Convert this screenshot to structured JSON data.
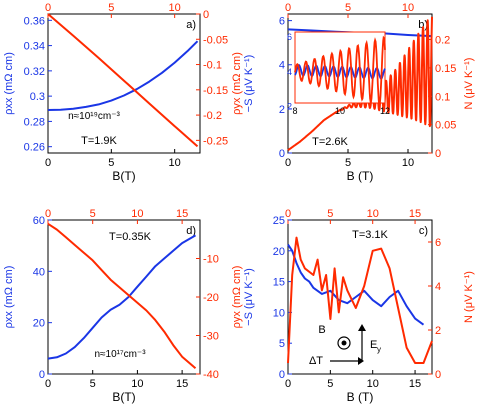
{
  "colors": {
    "blue": "#1a36e6",
    "red": "#ff2a00",
    "black": "#000000"
  },
  "chart_data": [
    {
      "panel_label": "a)",
      "type": "line",
      "xlabel": "B(T)",
      "ylabel": "ρxx (mΩ cm)",
      "y2label": "ρyx (mΩ cm)",
      "bottom_ticks": [
        "0",
        "5",
        "10"
      ],
      "top_ticks": [
        "0",
        "5",
        "10"
      ],
      "left_ticks": [
        "0.26",
        "0.28",
        "0.3",
        "0.32",
        "0.34",
        "0.36"
      ],
      "right_ticks": [
        "-0.25",
        "-0.2",
        "-0.15",
        "-0.1",
        "-0.05",
        "0"
      ],
      "xlim": [
        0,
        12
      ],
      "ylim": [
        0.255,
        0.365
      ],
      "y2lim": [
        -0.275,
        0
      ],
      "annotations": [
        "n≈10¹⁹cm⁻³",
        "T=1.9K"
      ],
      "series": [
        {
          "axis": "left",
          "color": "blue",
          "x": [
            0,
            1,
            2,
            3,
            4,
            5,
            6,
            7,
            8,
            9,
            10,
            11,
            11.8
          ],
          "values": [
            0.289,
            0.2893,
            0.29,
            0.2915,
            0.2935,
            0.2965,
            0.3005,
            0.3055,
            0.3115,
            0.3185,
            0.3265,
            0.3355,
            0.3435
          ]
        },
        {
          "axis": "right",
          "color": "red",
          "x": [
            0,
            2,
            4,
            6,
            8,
            10,
            11.8
          ],
          "values": [
            0,
            -0.043,
            -0.087,
            -0.132,
            -0.177,
            -0.222,
            -0.262
          ]
        }
      ]
    },
    {
      "panel_label": "b)",
      "type": "line",
      "xlabel": "B (T)",
      "ylabel": "−S (μV K⁻¹)",
      "y2label": "N (μV K⁻¹)",
      "bottom_ticks": [
        "0",
        "5",
        "10"
      ],
      "top_ticks": [
        "0",
        "5",
        "10"
      ],
      "left_ticks": [
        "0",
        "2",
        "4",
        "6"
      ],
      "right_ticks": [
        "0",
        "0.05",
        "0.1",
        "0.15",
        "0.2"
      ],
      "xlim": [
        0,
        12
      ],
      "ylim": [
        0,
        6.3
      ],
      "y2lim": [
        0,
        0.245
      ],
      "annotations": [
        "T=2.6K"
      ],
      "series": [
        {
          "axis": "left",
          "color": "blue",
          "x": [
            0,
            2,
            4,
            6,
            8,
            10,
            12
          ],
          "values": [
            5.6,
            5.55,
            5.5,
            5.45,
            5.42,
            5.35,
            5.3
          ]
        },
        {
          "axis": "right",
          "color": "red",
          "x": [
            0,
            1,
            2,
            3,
            4,
            5,
            6,
            7,
            8,
            9,
            10,
            11,
            12
          ],
          "values": [
            0.005,
            0.02,
            0.038,
            0.058,
            0.072,
            0.082,
            0.087,
            0.092,
            0.098,
            0.108,
            0.122,
            0.135,
            0.145
          ],
          "oscillation_amplitude": [
            0,
            0,
            0,
            0,
            0,
            0.002,
            0.006,
            0.013,
            0.025,
            0.04,
            0.06,
            0.08,
            0.1
          ]
        }
      ],
      "inset": {
        "xlim": [
          8,
          12
        ],
        "ylim": [
          2.2,
          6.3
        ],
        "x_ticks": [
          "8",
          "10",
          "12"
        ],
        "y_ticks": [
          "2",
          "4",
          "6"
        ]
      }
    },
    {
      "panel_label": "d)",
      "type": "line",
      "xlabel": "B(T)",
      "ylabel": "ρxx (mΩ cm)",
      "y2label": "ρyx (mΩ cm)",
      "bottom_ticks": [
        "0",
        "5",
        "10",
        "15"
      ],
      "top_ticks": [
        "0",
        "5",
        "10",
        "15"
      ],
      "left_ticks": [
        "0",
        "20",
        "40",
        "60"
      ],
      "right_ticks": [
        "-40",
        "-30",
        "-20",
        "-10"
      ],
      "xlim": [
        0,
        17
      ],
      "ylim": [
        0,
        60
      ],
      "y2lim": [
        -40,
        0
      ],
      "annotations": [
        "T=0.35K",
        "n≈10¹⁷cm⁻³"
      ],
      "series": [
        {
          "axis": "left",
          "color": "blue",
          "x": [
            0,
            1,
            2,
            3,
            4,
            5,
            6,
            7,
            8,
            9,
            10,
            11,
            12,
            13,
            14,
            15,
            16.5
          ],
          "values": [
            6,
            6.5,
            8,
            10.5,
            14,
            18,
            22,
            25,
            27,
            30,
            34,
            38,
            42,
            45,
            48,
            51,
            54
          ]
        },
        {
          "axis": "right",
          "color": "red",
          "x": [
            0,
            1,
            2,
            3,
            4,
            5,
            6,
            7,
            8,
            9,
            10,
            11,
            12,
            13,
            14,
            15,
            16.5
          ],
          "values": [
            -1,
            -2.5,
            -4.5,
            -6.5,
            -8.5,
            -10.5,
            -13,
            -15.5,
            -17.5,
            -19.5,
            -21.5,
            -23.5,
            -26,
            -29,
            -32.5,
            -35.5,
            -38.5
          ]
        }
      ]
    },
    {
      "panel_label": "c)",
      "type": "line",
      "xlabel": "B (T)",
      "ylabel": "−S (μV K⁻¹)",
      "y2label": "N (μV K⁻¹)",
      "bottom_ticks": [
        "0",
        "5",
        "10",
        "15"
      ],
      "top_ticks": [
        "0",
        "5",
        "10",
        "15"
      ],
      "left_ticks": [
        "0",
        "5",
        "10",
        "15",
        "20",
        "25"
      ],
      "right_ticks": [
        "0",
        "2",
        "4",
        "6"
      ],
      "xlim": [
        0,
        17
      ],
      "ylim": [
        0,
        25
      ],
      "y2lim": [
        0,
        7
      ],
      "annotations": [
        "T=3.1K",
        "B",
        "ΔT",
        "E",
        "y"
      ],
      "series": [
        {
          "axis": "left",
          "color": "blue",
          "x": [
            0,
            0.5,
            1,
            1.5,
            2,
            2.5,
            3,
            4,
            5,
            6,
            7,
            8,
            9,
            10,
            11,
            12,
            13,
            14,
            15,
            16
          ],
          "values": [
            21,
            20,
            18,
            16.5,
            15.5,
            15,
            14,
            13,
            13.5,
            12,
            11.5,
            12.5,
            13.5,
            12,
            11,
            12.5,
            13.5,
            11,
            9,
            8
          ]
        },
        {
          "axis": "right",
          "color": "red",
          "x": [
            0,
            0.5,
            1,
            1.5,
            2,
            3,
            3.5,
            4,
            4.5,
            5,
            5.5,
            6,
            6.5,
            7,
            8,
            9,
            10,
            11,
            12,
            13,
            14,
            15,
            16,
            17
          ],
          "values": [
            0.5,
            4.5,
            6.2,
            5.2,
            4.8,
            4.5,
            5.2,
            3.8,
            4.5,
            2.5,
            4.8,
            2.8,
            4.4,
            3.8,
            3,
            4,
            5.6,
            5.7,
            4.8,
            3,
            1.2,
            0.5,
            0.5,
            1.5
          ]
        }
      ]
    }
  ]
}
